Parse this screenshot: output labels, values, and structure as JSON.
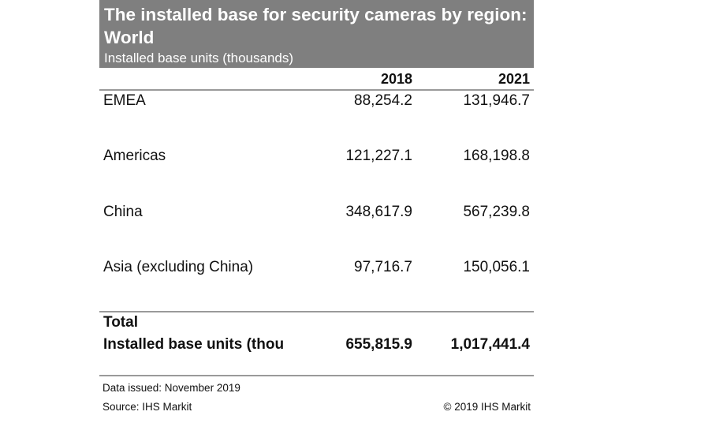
{
  "chart_data": {
    "type": "table",
    "title": "The installed base for security cameras by region: World",
    "subtitle": "Installed base units (thousands)",
    "columns": [
      "2018",
      "2021"
    ],
    "rows": [
      {
        "label": "EMEA",
        "values": [
          "88,254.2",
          "131,946.7"
        ]
      },
      {
        "label": "Americas",
        "values": [
          "121,227.1",
          "168,198.8"
        ]
      },
      {
        "label": "China",
        "values": [
          "348,617.9",
          "567,239.8"
        ]
      },
      {
        "label": "Asia (excluding China)",
        "values": [
          "97,716.7",
          "150,056.1"
        ]
      }
    ],
    "total": {
      "label_line1": "Total",
      "label_line2": "Installed base units (thou",
      "values": [
        "655,815.9",
        "1,017,441.4"
      ]
    }
  },
  "footer": {
    "issued": "Data issued: November 2019",
    "source": "Source: IHS Markit",
    "copyright": "© 2019 IHS Markit"
  },
  "colors": {
    "header_bg": "#7f7f7f",
    "header_text": "#ffffff",
    "rule": "#9a9a9a"
  }
}
